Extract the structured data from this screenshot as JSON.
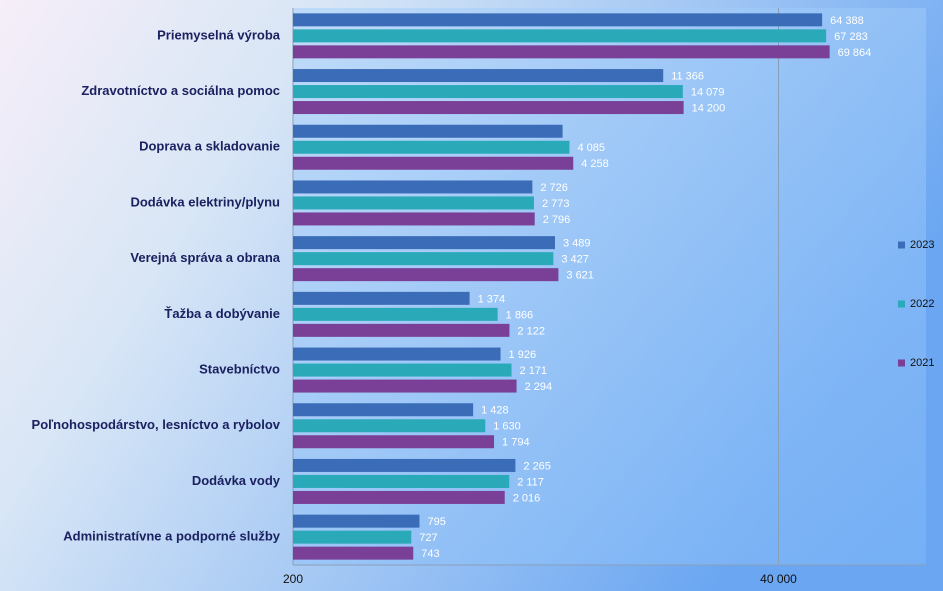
{
  "chart_data": {
    "type": "hbar",
    "categories": [
      "Priemyselná výroba",
      "Zdravotníctvo a sociálna pomoc",
      "Doprava a skladovanie",
      "Dodávka elektriny/plynu",
      "Verejná správa a obrana",
      "Ťažba a dobývanie",
      "Stavebníctvo",
      "Poľnohospodárstvo, lesníctvo a rybolov",
      "Dodávka vody",
      "Administratívne a podporné služby"
    ],
    "series": [
      {
        "name": "2023",
        "color": "#3b6cb7",
        "values": [
          64388,
          11366,
          3790,
          2726,
          3489,
          1374,
          1926,
          1428,
          2265,
          795
        ],
        "value_labels": [
          "64 388",
          "11 366",
          null,
          "2 726",
          "3 489",
          "1 374",
          "1 926",
          "1 428",
          "2 265",
          "795"
        ]
      },
      {
        "name": "2022",
        "color": "#2aa9b9",
        "values": [
          67283,
          14079,
          4085,
          2773,
          3427,
          1866,
          2171,
          1630,
          2117,
          727
        ],
        "value_labels": [
          "67 283",
          "14 079",
          "4 085",
          "2 773",
          "3 427",
          "1 866",
          "2 171",
          "1 630",
          "2 117",
          "727"
        ]
      },
      {
        "name": "2021",
        "color": "#7a3f96",
        "values": [
          69864,
          14200,
          4258,
          2796,
          3621,
          2122,
          2294,
          1794,
          2016,
          743
        ],
        "value_labels": [
          "69 864",
          "14 200",
          "4 258",
          "2 796",
          "3 621",
          "2 122",
          "2 294",
          "1 794",
          "2 016",
          "743"
        ]
      }
    ],
    "x_log": true,
    "xlim": [
      200,
      200000
    ],
    "xticks": [
      200,
      {
        "value": 40000,
        "label": "40 000"
      }
    ],
    "grid": true,
    "legend": "right"
  }
}
